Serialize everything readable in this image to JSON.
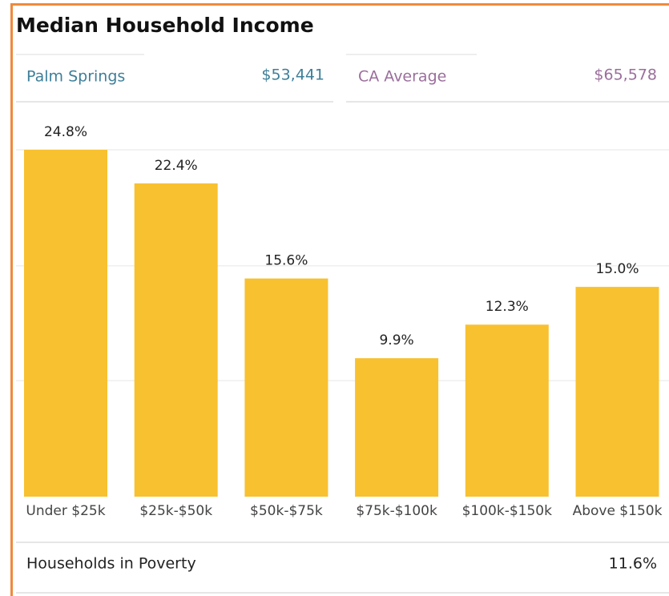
{
  "header": {
    "title": "Median Household Income"
  },
  "stats": [
    {
      "label": "Palm Springs",
      "value": "$53,441"
    },
    {
      "label": "CA Average",
      "value": "$65,578"
    }
  ],
  "chart_data": {
    "type": "bar",
    "categories": [
      "Under $25k",
      "$25k-$50k",
      "$50k-$75k",
      "$75k-$100k",
      "$100k-$150k",
      "Above $150k"
    ],
    "values": [
      24.8,
      22.4,
      15.6,
      9.9,
      12.3,
      15.0
    ],
    "value_labels": [
      "24.8%",
      "22.4%",
      "15.6%",
      "9.9%",
      "12.3%",
      "15.0%"
    ],
    "color": "#f8c12f",
    "ylim": [
      0,
      24.8
    ],
    "yticks": [
      8.3,
      16.5,
      24.8
    ],
    "grid": true
  },
  "footer": {
    "label": "Households in Poverty",
    "value": "11.6%"
  }
}
